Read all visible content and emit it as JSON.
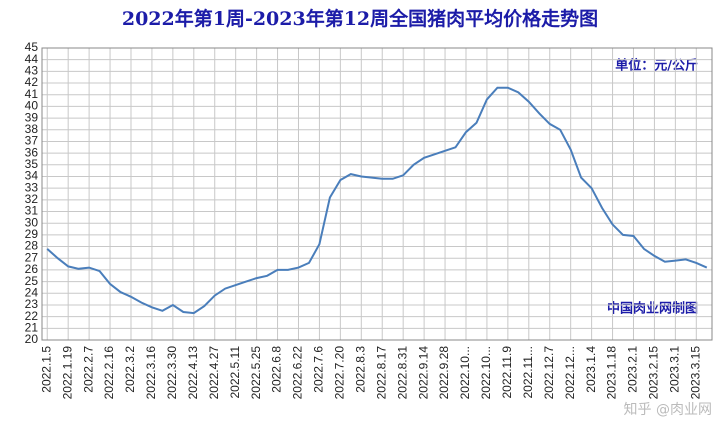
{
  "chart_data": {
    "type": "line",
    "title": "2022年第1周-2023年第12周全国猪肉平均价格走势图",
    "annotations": [
      "单位：元/公斤",
      "中国肉业网制图"
    ],
    "watermark": "知乎 @肉业网",
    "categories": [
      "2022.1.5",
      null,
      "2022.1.19",
      null,
      "2022.2.7",
      null,
      "2022.2.16",
      null,
      "2022.3.2",
      null,
      "2022.3.16",
      null,
      "2022.3.30",
      null,
      "2022.4.13",
      null,
      "2022.4.27",
      null,
      "2022.5.11",
      null,
      "2022.5.25",
      null,
      "2022.6.8",
      null,
      "2022.6.22",
      null,
      "2022.7.6",
      null,
      "2022.7.20",
      null,
      "2022.8.3",
      null,
      "2022.8.17",
      null,
      "2022.8.31",
      null,
      "2022.9.14",
      null,
      "2022.9.28",
      null,
      "2022.10...",
      null,
      "2022.10...",
      null,
      "2022.11.9",
      null,
      "2022.11...",
      null,
      "2022.12.7",
      null,
      "2022.12...",
      null,
      "2023.1.4",
      null,
      "2023.1.18",
      null,
      "2023.2.1",
      null,
      "2023.2.15",
      null,
      "2023.3.1",
      null,
      "2023.3.15",
      null
    ],
    "series": [
      {
        "color": "#4a7ebb",
        "values": [
          27.8,
          27.0,
          26.3,
          26.1,
          26.2,
          25.9,
          24.8,
          24.1,
          23.7,
          23.2,
          22.8,
          22.5,
          23.0,
          22.4,
          22.3,
          22.9,
          23.8,
          24.4,
          24.7,
          25.0,
          25.3,
          25.5,
          26.0,
          26.0,
          26.2,
          26.6,
          28.2,
          32.2,
          33.7,
          34.2,
          34.0,
          33.9,
          33.8,
          33.8,
          34.1,
          35.0,
          35.6,
          35.9,
          36.2,
          36.5,
          37.8,
          38.6,
          40.6,
          41.6,
          41.6,
          41.2,
          40.4,
          39.4,
          38.5,
          38.0,
          36.3,
          33.9,
          33.0,
          31.3,
          29.9,
          29.0,
          28.9,
          27.8,
          27.2,
          26.7,
          26.8,
          26.9,
          26.6,
          26.2
        ]
      }
    ],
    "ylim": [
      20,
      45
    ],
    "yticks": [
      20,
      21,
      22,
      23,
      24,
      25,
      26,
      27,
      28,
      29,
      30,
      31,
      32,
      33,
      34,
      35,
      36,
      37,
      38,
      39,
      40,
      41,
      42,
      43,
      44,
      45
    ],
    "grid": true
  }
}
